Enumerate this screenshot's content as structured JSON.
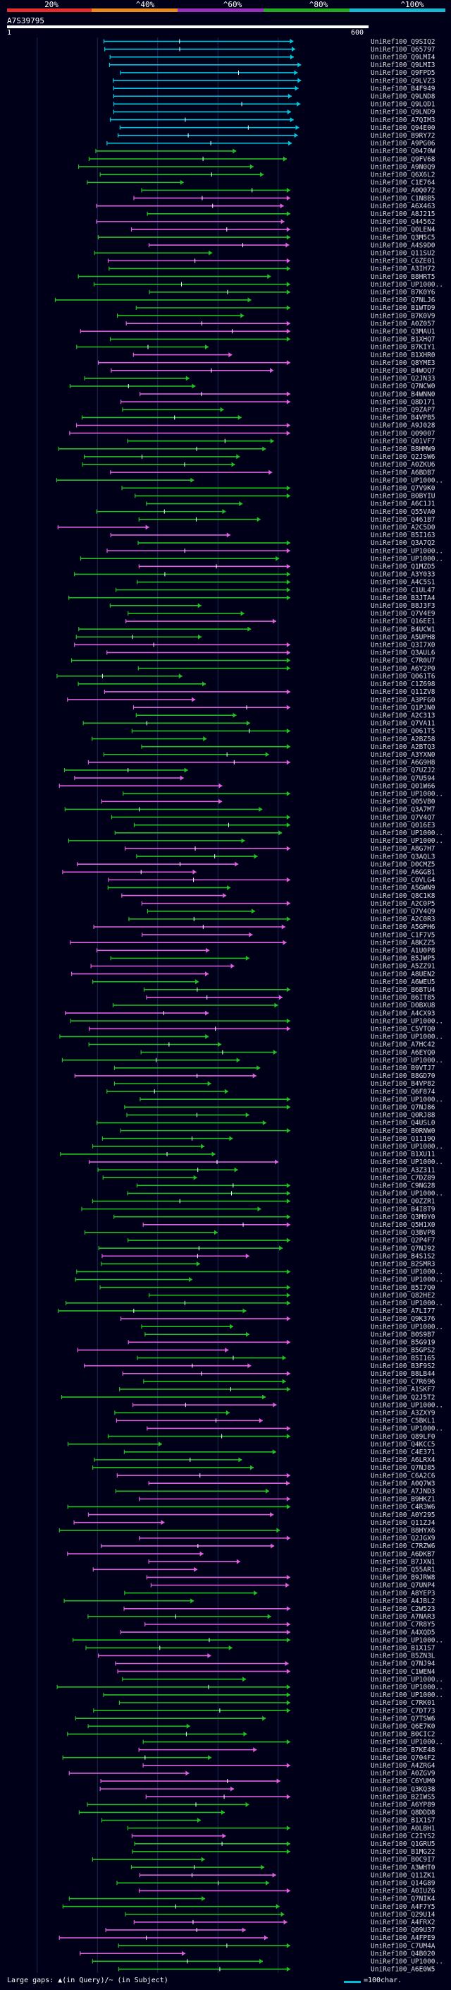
{
  "scale": {
    "labels": [
      "20%",
      "^40%",
      "^60%",
      "^80%",
      "^100%"
    ],
    "colors": [
      "#e52d2d",
      "#e88a1c",
      "#9b2fbd",
      "#22aa22",
      "#18b8d4"
    ]
  },
  "query": {
    "id": "A7S39795",
    "start": "1",
    "end": "600"
  },
  "legend": {
    "gaps": "Large gaps: ▲(in Query)/~ (in Subject)",
    "scale": "=100char."
  },
  "hit_colors": {
    "cyan": "#00c8e0",
    "green": "#22c022",
    "magenta": "#e060e0"
  },
  "chart_data": {
    "type": "alignment-overview",
    "query_length": 600,
    "bands": [
      "cyan",
      "green",
      "magenta"
    ],
    "hits": [
      "UniRef100_Q9SIQ2",
      "UniRef100_Q65797",
      "UniRef100_Q9LMI4",
      "UniRef100_Q9LMI3",
      "UniRef100_Q9FPD5",
      "UniRef100_Q9LVZ3",
      "UniRef100_B4F949",
      "UniRef100_Q9LND8",
      "UniRef100_Q9LQD1",
      "UniRef100_Q9LND9",
      "UniRef100_A7QIM3",
      "UniRef100_Q94E00",
      "UniRef100_B9RY72",
      "UniRef100_A9PG06",
      "UniRef100_Q0470W",
      "UniRef100_Q9FV68",
      "UniRef100_A9N0Q9",
      "UniRef100_Q6X6L2",
      "UniRef100_C1E764",
      "UniRef100_A0Q072",
      "UniRef100_C1N8B5",
      "UniRef100_A6X463",
      "UniRef100_A8J215",
      "UniRef100_Q44562",
      "UniRef100_Q0LEN4",
      "UniRef100_Q3M5C5",
      "UniRef100_A4S9D0",
      "UniRef100_Q11SU2",
      "UniRef100_C6ZE01",
      "UniRef100_A3IH72",
      "UniRef100_B8HRT5",
      "UniRef100_UP1000..",
      "UniRef100_B7K0Y6",
      "UniRef100_Q7NLJ6",
      "UniRef100_B1WTD9",
      "UniRef100_B7K0V9",
      "UniRef100_A0Z057",
      "UniRef100_Q3MAU1",
      "UniRef100_B1XHQ7",
      "UniRef100_B7KIY1",
      "UniRef100_B1XHR0",
      "UniRef100_Q8YME3",
      "UniRef100_B4WOQ7",
      "UniRef100_Q2JN33",
      "UniRef100_Q7NCW0",
      "UniRef100_B4WNN0",
      "UniRef100_Q8D171",
      "UniRef100_Q9ZAP7",
      "UniRef100_B4VPB5",
      "UniRef100_A9J028",
      "UniRef100_Q09007",
      "UniRef100_Q01VF7",
      "UniRef100_B8HMW9",
      "UniRef100_Q2JSW6",
      "UniRef100_A0ZKU6",
      "UniRef100_A6BDB7",
      "UniRef100_UP1000..",
      "UniRef100_Q7V9K0",
      "UniRef100_B0BYIU",
      "UniRef100_A6C1J1",
      "UniRef100_Q55VA0",
      "UniRef100_Q461B7",
      "UniRef100_A2C5D0",
      "UniRef100_B5I163",
      "UniRef100_Q3A7Q2",
      "UniRef100_UP1000..",
      "UniRef100_UP1000..",
      "UniRef100_Q1MZD5",
      "UniRef100_A3Y033",
      "UniRef100_A4C5S1",
      "UniRef100_C1UL47",
      "UniRef100_B3JTA4",
      "UniRef100_B8J3F3",
      "UniRef100_Q7V4E9",
      "UniRef100_Q16EE1",
      "UniRef100_B4UCW1",
      "UniRef100_A5UPH8",
      "UniRef100_Q3I7X0",
      "UniRef100_Q3AUL6",
      "UniRef100_C7R0U7",
      "UniRef100_A6Y2P0",
      "UniRef100_Q061T6",
      "UniRef100_C1Z698",
      "UniRef100_Q11ZV8",
      "UniRef100_A3PFG0",
      "UniRef100_Q1PJN0",
      "UniRef100_A2C313",
      "UniRef100_Q7VA11",
      "UniRef100_Q061T5",
      "UniRef100_A2BZ58",
      "UniRef100_A2BTQ3",
      "UniRef100_A3YXN0",
      "UniRef100_A6G9H8",
      "UniRef100_Q7UZJ2",
      "UniRef100_Q7U594",
      "UniRef100_Q01W66",
      "UniRef100_UP1000..",
      "UniRef100_Q05VB0",
      "UniRef100_Q3A7M7",
      "UniRef100_Q7V4Q7",
      "UniRef100_Q016E3",
      "UniRef100_UP1000..",
      "UniRef100_UP1000..",
      "UniRef100_A8G7H7",
      "UniRef100_Q3AQL3",
      "UniRef100_D0CMZ5",
      "UniRef100_A6GGB1",
      "UniRef100_C0VLG4",
      "UniRef100_A5GWN9",
      "UniRef100_Q8C1K8",
      "UniRef100_A2C0P5",
      "UniRef100_Q7V4Q9",
      "UniRef100_A2C0R3",
      "UniRef100_A5GPH6",
      "UniRef100_C1F7V5",
      "UniRef100_A8KZZ5",
      "UniRef100_A1U0P8",
      "UniRef100_B5JWP5",
      "UniRef100_A5ZZ91",
      "UniRef100_A8UEN2",
      "UniRef100_A6WEU5",
      "UniRef100_B6BTU4",
      "UniRef100_B6IT85",
      "UniRef100_D0BXU8",
      "UniRef100_A4CX93",
      "UniRef100_UP1000..",
      "UniRef100_C5VTQ0",
      "UniRef100_UP1000..",
      "UniRef100_A7HC42",
      "UniRef100_A6EYQ0",
      "UniRef100_UP1000..",
      "UniRef100_B9VTJ7",
      "UniRef100_B8GD70",
      "UniRef100_B4VP82",
      "UniRef100_Q6F874",
      "UniRef100_UP1000..",
      "UniRef100_Q7NJ86",
      "UniRef100_Q0RJ88",
      "UniRef100_Q4USL0",
      "UniRef100_B0RNW0",
      "UniRef100_Q1119Q",
      "UniRef100_UP1000..",
      "UniRef100_B1XU11",
      "UniRef100_UP1000..",
      "UniRef100_A3Z311",
      "UniRef100_C7DZ89",
      "UniRef100_C9NG28",
      "UniRef100_UP1000..",
      "UniRef100_Q0ZZR1",
      "UniRef100_B4I8T9",
      "UniRef100_Q3M9Y0",
      "UniRef100_Q5H1X0",
      "UniRef100_Q3BVP8",
      "UniRef100_Q2P4F7",
      "UniRef100_Q7NJ92",
      "UniRef100_B4S1S2",
      "UniRef100_B2SMR3",
      "UniRef100_UP1000..",
      "UniRef100_UP1000..",
      "UniRef100_B5I7Q0",
      "UniRef100_Q82HE2",
      "UniRef100_UP1000..",
      "UniRef100_A7LI77",
      "UniRef100_Q9K376",
      "UniRef100_UP1000..",
      "UniRef100_B0S9B7",
      "UniRef100_B5G919",
      "UniRef100_B5GPS2",
      "UniRef100_B5I165",
      "UniRef100_B3F9S2",
      "UniRef100_B8LB44",
      "UniRef100_C7R696",
      "UniRef100_A1SKF7",
      "UniRef100_Q2J5T2",
      "UniRef100_UP1000..",
      "UniRef100_A3ZXY9",
      "UniRef100_C5BKL1",
      "UniRef100_UP1000..",
      "UniRef100_Q89LF0",
      "UniRef100_Q4KCC5",
      "UniRef100_C4E371",
      "UniRef100_A6LRX4",
      "UniRef100_Q7NJ85",
      "UniRef100_C6A2C6",
      "UniRef100_A0Q7W3",
      "UniRef100_A7JND3",
      "UniRef100_B9HKZ1",
      "UniRef100_C4R3W6",
      "UniRef100_A0Y295",
      "UniRef100_Q11ZJ4",
      "UniRef100_B8HYX6",
      "UniRef100_Q2JGX9",
      "UniRef100_C7RZW6",
      "UniRef100_A6DKB7",
      "UniRef100_B7JXN1",
      "UniRef100_Q55AR1",
      "UniRef100_B9JRW8",
      "UniRef100_Q7UNP4",
      "UniRef100_A8YEP3",
      "UniRef100_A4JBL2",
      "UniRef100_C2W523",
      "UniRef100_A7NAR3",
      "UniRef100_C7R8Y5",
      "UniRef100_A4XQD5",
      "UniRef100_UP1000..",
      "UniRef100_B1X1S7",
      "UniRef100_B5ZN3L",
      "UniRef100_Q7NJ94",
      "UniRef100_C1WEN4",
      "UniRef100_UP1000..",
      "UniRef100_UP1000..",
      "UniRef100_UP1000..",
      "UniRef100_C7RK01",
      "UniRef100_C7DT73",
      "UniRef100_Q7TSW6",
      "UniRef100_Q6E7K0",
      "UniRef100_B0CIC2",
      "UniRef100_UP1000..",
      "UniRef100_B7KE48",
      "UniRef100_Q704F2",
      "UniRef100_A4ZRG4",
      "UniRef100_A0ZGV9",
      "UniRef100_C6YUM0",
      "UniRef100_Q3KQ38",
      "UniRef100_B2IWS5",
      "UniRef100_A6YP89",
      "UniRef100_Q8DDD8",
      "UniRef100_B1X1S7",
      "UniRef100_A0LBH1",
      "UniRef100_C2IYS2",
      "UniRef100_Q1GRU5",
      "UniRef100_B1MG22",
      "UniRef100_B0C9I7",
      "UniRef100_A3WHT0",
      "UniRef100_Q11ZK1",
      "UniRef100_Q14G89",
      "UniRef100_A0IUZ6",
      "UniRef100_Q7NIK4",
      "UniRef100_A4F7Y5",
      "UniRef100_Q29U14",
      "UniRef100_A4FRX2",
      "UniRef100_Q09U37",
      "UniRef100_A4FPE9",
      "UniRef100_C7UM4A",
      "UniRef100_Q4B020",
      "UniRef100_UP1000..",
      "UniRef100_A6E0W5"
    ]
  }
}
